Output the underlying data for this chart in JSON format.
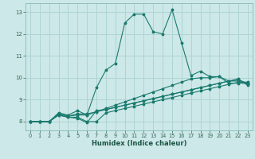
{
  "title": "",
  "xlabel": "Humidex (Indice chaleur)",
  "bg_color": "#cde8e8",
  "grid_color": "#afd4d4",
  "line_color": "#1a7a6e",
  "xlim": [
    -0.5,
    23.5
  ],
  "ylim": [
    7.6,
    13.4
  ],
  "xticks": [
    0,
    1,
    2,
    3,
    4,
    5,
    6,
    7,
    8,
    9,
    10,
    11,
    12,
    13,
    14,
    15,
    16,
    17,
    18,
    19,
    20,
    21,
    22,
    23
  ],
  "yticks": [
    8,
    9,
    10,
    11,
    12,
    13
  ],
  "lines": [
    [
      8.0,
      8.0,
      8.0,
      8.35,
      8.25,
      8.3,
      8.3,
      8.45,
      8.6,
      8.75,
      8.9,
      9.05,
      9.2,
      9.35,
      9.5,
      9.65,
      9.8,
      9.95,
      10.0,
      10.0,
      10.05,
      9.85,
      9.85,
      9.7
    ],
    [
      8.0,
      8.0,
      8.0,
      8.3,
      8.2,
      8.2,
      8.0,
      8.0,
      8.4,
      8.5,
      8.6,
      8.7,
      8.8,
      8.9,
      9.0,
      9.1,
      9.2,
      9.3,
      9.4,
      9.5,
      9.6,
      9.7,
      9.8,
      9.8
    ],
    [
      8.0,
      8.0,
      8.0,
      8.3,
      8.2,
      8.15,
      7.95,
      8.5,
      8.55,
      8.65,
      8.75,
      8.85,
      8.95,
      9.05,
      9.15,
      9.25,
      9.35,
      9.45,
      9.55,
      9.65,
      9.75,
      9.85,
      9.9,
      9.75
    ],
    [
      8.0,
      8.0,
      8.0,
      8.35,
      8.25,
      8.35,
      8.35,
      8.45,
      8.55,
      8.65,
      8.75,
      8.85,
      8.95,
      9.05,
      9.15,
      9.25,
      9.35,
      9.45,
      9.55,
      9.65,
      9.75,
      9.85,
      9.95,
      9.65
    ],
    [
      8.0,
      8.0,
      8.0,
      8.4,
      8.3,
      8.5,
      8.3,
      9.55,
      10.35,
      10.65,
      12.5,
      12.9,
      12.9,
      12.1,
      12.0,
      13.1,
      11.6,
      10.1,
      10.3,
      10.05,
      10.05,
      9.75,
      9.75,
      9.75
    ]
  ]
}
